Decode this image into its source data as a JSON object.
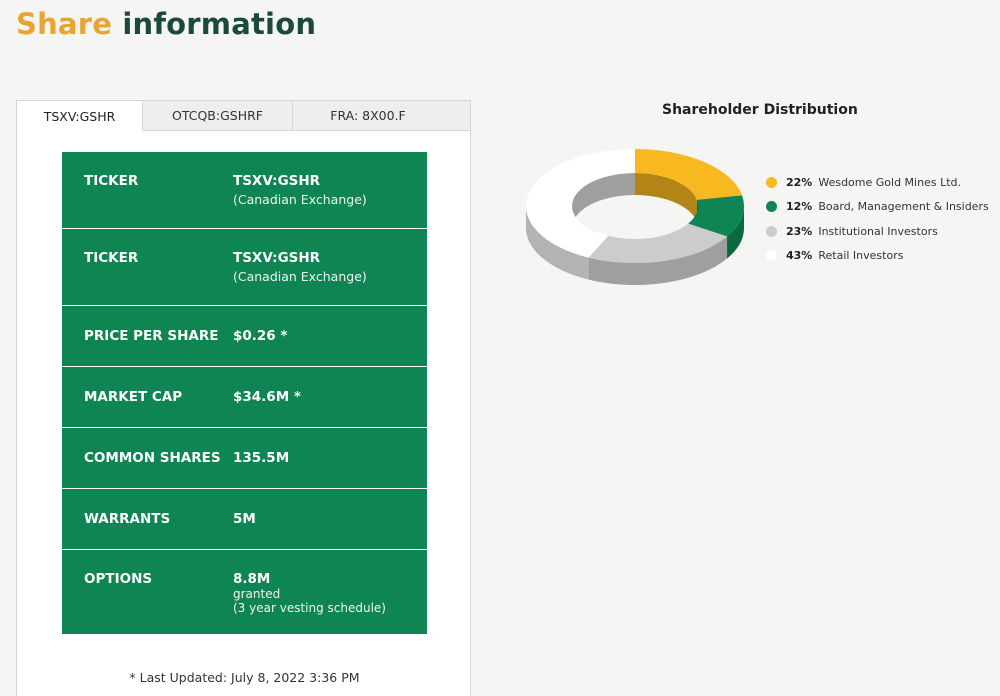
{
  "header": {
    "title_part1": "Share",
    "title_part2": "information"
  },
  "tabs": [
    {
      "label": "TSXV:GSHR",
      "active": true
    },
    {
      "label": "OTCQB:GSHRF",
      "active": false
    },
    {
      "label": "FRA: 8X00.F",
      "active": false
    }
  ],
  "share_table": {
    "rows": [
      {
        "label": "TICKER",
        "value": "TSXV:GSHR",
        "note": "(Canadian Exchange)"
      },
      {
        "label": "TICKER",
        "value": "TSXV:GSHR",
        "note": "(Canadian Exchange)"
      },
      {
        "label": "PRICE PER SHARE",
        "value": "$0.26 *"
      },
      {
        "label": "MARKET CAP",
        "value": "$34.6M *"
      },
      {
        "label": "COMMON SHARES",
        "value": "135.5M"
      },
      {
        "label": "WARRANTS",
        "value": "5M"
      },
      {
        "label": "OPTIONS",
        "value": "8.8M",
        "note_line1": "granted",
        "note_line2": "(3 year vesting schedule)"
      }
    ]
  },
  "last_updated": "* Last Updated: July 8, 2022 3:36 PM",
  "chart_data": {
    "type": "pie",
    "title": "Shareholder Distribution",
    "categories": [
      "Wesdome Gold Mines Ltd.",
      "Board, Management & Insiders",
      "Institutional Investors",
      "Retail Investors"
    ],
    "values": [
      22,
      12,
      23,
      43
    ],
    "value_labels": [
      "22%",
      "12%",
      "23%",
      "43%"
    ],
    "colors": [
      "#f8b920",
      "#0e8553",
      "#cccccc",
      "#ffffff"
    ],
    "legend_position": "right",
    "style": "3d-donut"
  }
}
